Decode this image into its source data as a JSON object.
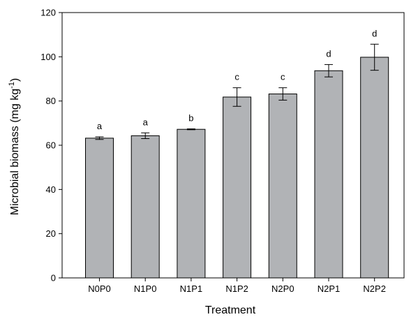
{
  "chart_data": {
    "type": "bar",
    "title": "",
    "xlabel": "Treatment",
    "ylabel_main": "Microbial biomass (mg kg",
    "ylabel_sup": "-1",
    "ylabel_close": ")",
    "categories": [
      "N0P0",
      "N1P0",
      "N1P1",
      "N1P2",
      "N2P0",
      "N2P1",
      "N2P2"
    ],
    "values": [
      63.2,
      64.3,
      67.2,
      81.8,
      83.2,
      93.7,
      99.8
    ],
    "errors": [
      0.6,
      1.3,
      0.2,
      4.2,
      2.8,
      2.8,
      5.9
    ],
    "significance": [
      "a",
      "a",
      "b",
      "c",
      "c",
      "d",
      "d"
    ],
    "ylim": [
      0,
      120
    ],
    "yticks": [
      0,
      20,
      40,
      60,
      80,
      100,
      120
    ],
    "grid": false,
    "legend": "none",
    "bar_color": "#b1b3b6",
    "bar_edge_color": "#000000"
  }
}
